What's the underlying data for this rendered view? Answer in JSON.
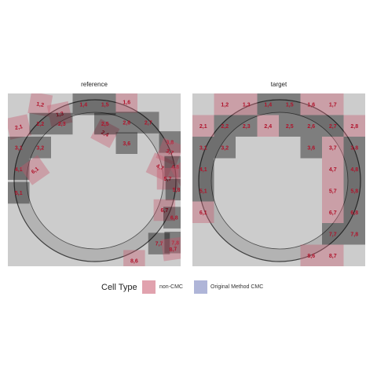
{
  "legend": {
    "title": "Cell Type",
    "entries": [
      {
        "label": "non-CMC",
        "color": "#c8566b"
      },
      {
        "label": "Original Method CMC",
        "color": "#6e78b8"
      }
    ]
  },
  "colors": {
    "panel_background": "#cccccc",
    "ring_fill": "#b3b3b3",
    "ring_edge": "#222222",
    "noncmc_text": "#b0132b",
    "cmc_text": "#1f2a7a"
  },
  "chart_data": [
    {
      "type": "heatmap",
      "title": "reference",
      "grid": {
        "rows": 8,
        "cols": 8,
        "origin": "top-left"
      },
      "cells": [
        {
          "label": "1,2",
          "row": 1,
          "col": 2,
          "angle": 10,
          "type": "non-CMC"
        },
        {
          "label": "1,3",
          "row": 1.45,
          "col": 2.9,
          "angle": -12,
          "type": "non-CMC"
        },
        {
          "label": "1,4",
          "row": 1,
          "col": 4,
          "angle": 0,
          "type": "CMC"
        },
        {
          "label": "1,5",
          "row": 1,
          "col": 5,
          "angle": 0,
          "type": "CMC"
        },
        {
          "label": "1,6",
          "row": 0.9,
          "col": 6,
          "angle": 0,
          "type": "non-CMC"
        },
        {
          "label": "2,1",
          "row": 2.05,
          "col": 1,
          "angle": -12,
          "type": "non-CMC"
        },
        {
          "label": "2,2",
          "row": 1.9,
          "col": 2,
          "angle": 0,
          "type": "CMC"
        },
        {
          "label": "2,3",
          "row": 1.9,
          "col": 3,
          "angle": 0,
          "type": "CMC"
        },
        {
          "label": "2,4",
          "row": 2.35,
          "col": 5,
          "angle": 28,
          "type": "non-CMC"
        },
        {
          "label": "2,5",
          "row": 1.9,
          "col": 5,
          "angle": 0,
          "type": "CMC"
        },
        {
          "label": "2,6",
          "row": 1.85,
          "col": 6,
          "angle": 0,
          "type": "CMC"
        },
        {
          "label": "2,7",
          "row": 1.85,
          "col": 7,
          "angle": 0,
          "type": "CMC"
        },
        {
          "label": "3,1",
          "row": 3,
          "col": 1,
          "angle": 0,
          "type": "CMC"
        },
        {
          "label": "3,2",
          "row": 3,
          "col": 2,
          "angle": 0,
          "type": "CMC"
        },
        {
          "label": "3,6",
          "row": 2.8,
          "col": 6,
          "angle": 0,
          "type": "CMC"
        },
        {
          "label": "3,8",
          "row": 2.75,
          "col": 8,
          "angle": 0,
          "type": "CMC"
        },
        {
          "label": "3,7",
          "row": 3.2,
          "col": 8,
          "angle": 22,
          "type": "non-CMC"
        },
        {
          "label": "4,1",
          "row": 4,
          "col": 1,
          "angle": 0,
          "type": "CMC"
        },
        {
          "label": "6,1",
          "row": 4.05,
          "col": 1.75,
          "angle": -35,
          "type": "non-CMC"
        },
        {
          "label": "4,7",
          "row": 3.9,
          "col": 7.55,
          "angle": 25,
          "type": "non-CMC"
        },
        {
          "label": "4,8",
          "row": 3.9,
          "col": 8.25,
          "angle": 0,
          "type": "CMC"
        },
        {
          "label": "5,6",
          "row": 4.15,
          "col": 8.7,
          "angle": -30,
          "type": "non-CMC"
        },
        {
          "label": "5,7",
          "row": 4.45,
          "col": 7.9,
          "angle": 0,
          "type": "non-CMC"
        },
        {
          "label": "5,8",
          "row": 4.95,
          "col": 8.3,
          "angle": 0,
          "type": "CMC"
        },
        {
          "label": "5,1",
          "row": 5.1,
          "col": 1,
          "angle": 0,
          "type": "CMC"
        },
        {
          "label": "6,7",
          "row": 5.9,
          "col": 7.75,
          "angle": 0,
          "type": "non-CMC"
        },
        {
          "label": "6,8",
          "row": 6.25,
          "col": 8.2,
          "angle": 0,
          "type": "CMC"
        },
        {
          "label": "7,7",
          "row": 7.45,
          "col": 7.5,
          "angle": 0,
          "type": "CMC"
        },
        {
          "label": "7,8",
          "row": 7.4,
          "col": 8.25,
          "angle": 0,
          "type": "CMC"
        },
        {
          "label": "8,7",
          "row": 7.7,
          "col": 8.15,
          "angle": -8,
          "type": "non-CMC"
        },
        {
          "label": "8,6",
          "row": 8.25,
          "col": 6.35,
          "angle": 0,
          "type": "non-CMC"
        }
      ]
    },
    {
      "type": "heatmap",
      "title": "target",
      "grid": {
        "rows": 8,
        "cols": 8,
        "origin": "top-left"
      },
      "cells": [
        {
          "label": "1,2",
          "row": 1,
          "col": 2,
          "type": "non-CMC"
        },
        {
          "label": "1,3",
          "row": 1,
          "col": 3,
          "type": "non-CMC"
        },
        {
          "label": "1,4",
          "row": 1,
          "col": 4,
          "type": "CMC"
        },
        {
          "label": "1,5",
          "row": 1,
          "col": 5,
          "type": "CMC"
        },
        {
          "label": "1,6",
          "row": 1,
          "col": 6,
          "type": "non-CMC"
        },
        {
          "label": "1,7",
          "row": 1,
          "col": 7,
          "type": "non-CMC"
        },
        {
          "label": "2,1",
          "row": 2,
          "col": 1,
          "type": "non-CMC"
        },
        {
          "label": "2,2",
          "row": 2,
          "col": 2,
          "type": "CMC"
        },
        {
          "label": "2,3",
          "row": 2,
          "col": 3,
          "type": "CMC"
        },
        {
          "label": "2,4",
          "row": 2,
          "col": 4,
          "type": "non-CMC"
        },
        {
          "label": "2,5",
          "row": 2,
          "col": 5,
          "type": "CMC"
        },
        {
          "label": "2,6",
          "row": 2,
          "col": 6,
          "type": "CMC"
        },
        {
          "label": "2,7",
          "row": 2,
          "col": 7,
          "type": "CMC"
        },
        {
          "label": "2,8",
          "row": 2,
          "col": 8,
          "type": "non-CMC"
        },
        {
          "label": "3,1",
          "row": 3,
          "col": 1,
          "type": "CMC"
        },
        {
          "label": "3,2",
          "row": 3,
          "col": 2,
          "type": "CMC"
        },
        {
          "label": "3,6",
          "row": 3,
          "col": 6,
          "type": "CMC"
        },
        {
          "label": "3,7",
          "row": 3,
          "col": 7,
          "type": "non-CMC"
        },
        {
          "label": "3,8",
          "row": 3,
          "col": 8,
          "type": "CMC"
        },
        {
          "label": "4,1",
          "row": 4,
          "col": 1,
          "type": "CMC"
        },
        {
          "label": "4,7",
          "row": 4,
          "col": 7,
          "type": "non-CMC"
        },
        {
          "label": "4,8",
          "row": 4,
          "col": 8,
          "type": "CMC"
        },
        {
          "label": "5,1",
          "row": 5,
          "col": 1,
          "type": "CMC"
        },
        {
          "label": "5,7",
          "row": 5,
          "col": 7,
          "type": "non-CMC"
        },
        {
          "label": "5,8",
          "row": 5,
          "col": 8,
          "type": "CMC"
        },
        {
          "label": "6,1",
          "row": 6,
          "col": 1,
          "type": "non-CMC"
        },
        {
          "label": "6,7",
          "row": 6,
          "col": 7,
          "type": "non-CMC"
        },
        {
          "label": "6,8",
          "row": 6,
          "col": 8,
          "type": "CMC"
        },
        {
          "label": "7,7",
          "row": 7,
          "col": 7,
          "type": "CMC"
        },
        {
          "label": "7,8",
          "row": 7,
          "col": 8,
          "type": "CMC"
        },
        {
          "label": "8,6",
          "row": 8,
          "col": 6,
          "type": "non-CMC"
        },
        {
          "label": "8,7",
          "row": 8,
          "col": 7,
          "type": "non-CMC"
        }
      ]
    }
  ]
}
